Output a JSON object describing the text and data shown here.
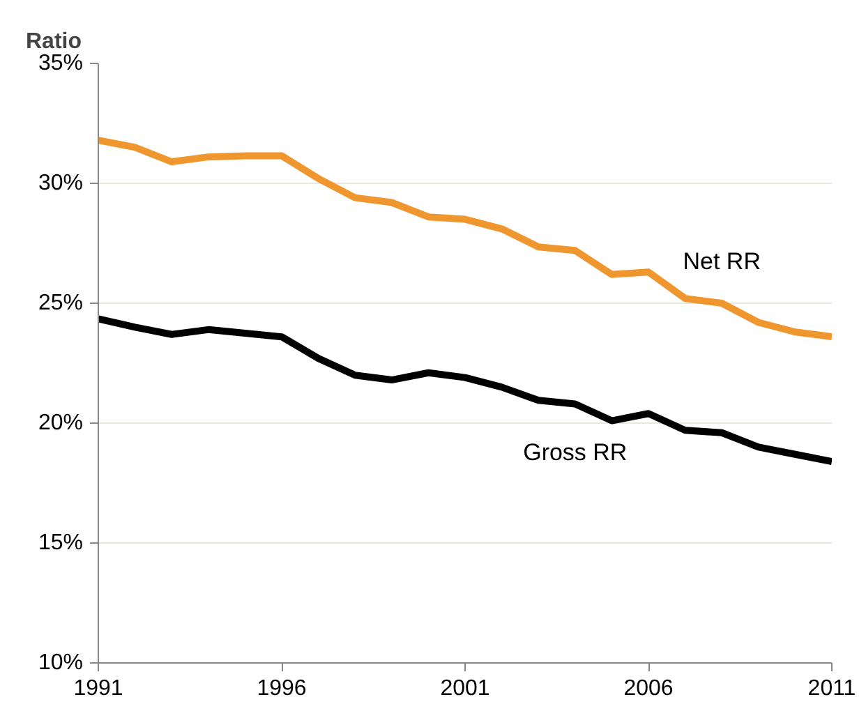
{
  "chart_data": {
    "type": "line",
    "ylabel": "Ratio",
    "x": [
      1991,
      1992,
      1993,
      1994,
      1995,
      1996,
      1997,
      1998,
      1999,
      2000,
      2001,
      2002,
      2003,
      2004,
      2005,
      2006,
      2007,
      2008,
      2009,
      2010,
      2011
    ],
    "series": [
      {
        "name": "Net RR",
        "color": "#f0962e",
        "values": [
          31.8,
          31.5,
          30.9,
          31.1,
          31.15,
          31.15,
          30.2,
          29.4,
          29.2,
          28.6,
          28.5,
          28.1,
          27.35,
          27.2,
          26.2,
          26.3,
          25.2,
          25.0,
          24.2,
          23.8,
          23.6
        ]
      },
      {
        "name": "Gross RR",
        "color": "#000000",
        "values": [
          24.35,
          24.0,
          23.7,
          23.9,
          23.75,
          23.6,
          22.7,
          22.0,
          21.8,
          22.1,
          21.9,
          21.5,
          20.95,
          20.8,
          20.1,
          20.4,
          19.7,
          19.6,
          19.0,
          18.7,
          18.4
        ]
      }
    ],
    "xlim": [
      1991,
      2011
    ],
    "xticks": [
      1991,
      1996,
      2001,
      2006,
      2011
    ],
    "ylim": [
      10,
      35
    ],
    "yticks": [
      {
        "value": 10,
        "label": "10%"
      },
      {
        "value": 15,
        "label": "15%"
      },
      {
        "value": 20,
        "label": "20%"
      },
      {
        "value": 25,
        "label": "25%"
      },
      {
        "value": 30,
        "label": "30%"
      },
      {
        "value": 35,
        "label": "35%"
      }
    ],
    "grid": "y"
  }
}
